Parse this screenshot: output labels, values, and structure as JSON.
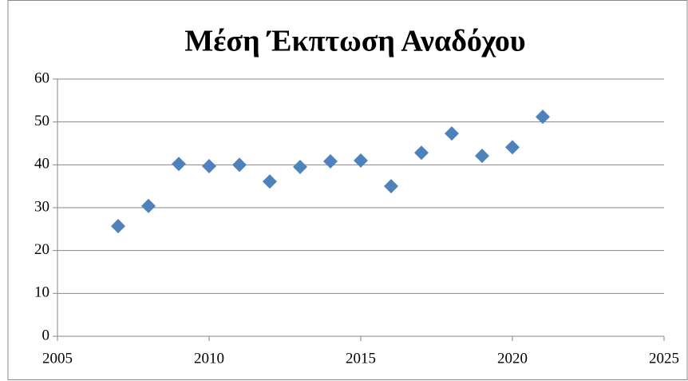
{
  "chart_data": {
    "type": "scatter",
    "title": "Μέση Έκπτωση Αναδόχου",
    "x": [
      2007,
      2008,
      2009,
      2010,
      2011,
      2012,
      2013,
      2014,
      2015,
      2016,
      2017,
      2018,
      2019,
      2020,
      2021
    ],
    "series": [
      {
        "name": "Μέση Έκπτωση Αναδόχου",
        "color": "#4f81bd",
        "values": [
          25.7,
          30.4,
          40.2,
          39.7,
          40.0,
          36.1,
          39.5,
          40.8,
          41.0,
          35.0,
          42.8,
          47.3,
          42.1,
          44.1,
          51.2
        ]
      }
    ],
    "xlim": [
      2005,
      2025
    ],
    "xticks": [
      2005,
      2010,
      2015,
      2020,
      2025
    ],
    "ylim": [
      0,
      60
    ],
    "yticks": [
      0,
      10,
      20,
      30,
      40,
      50,
      60
    ],
    "grid": true
  }
}
